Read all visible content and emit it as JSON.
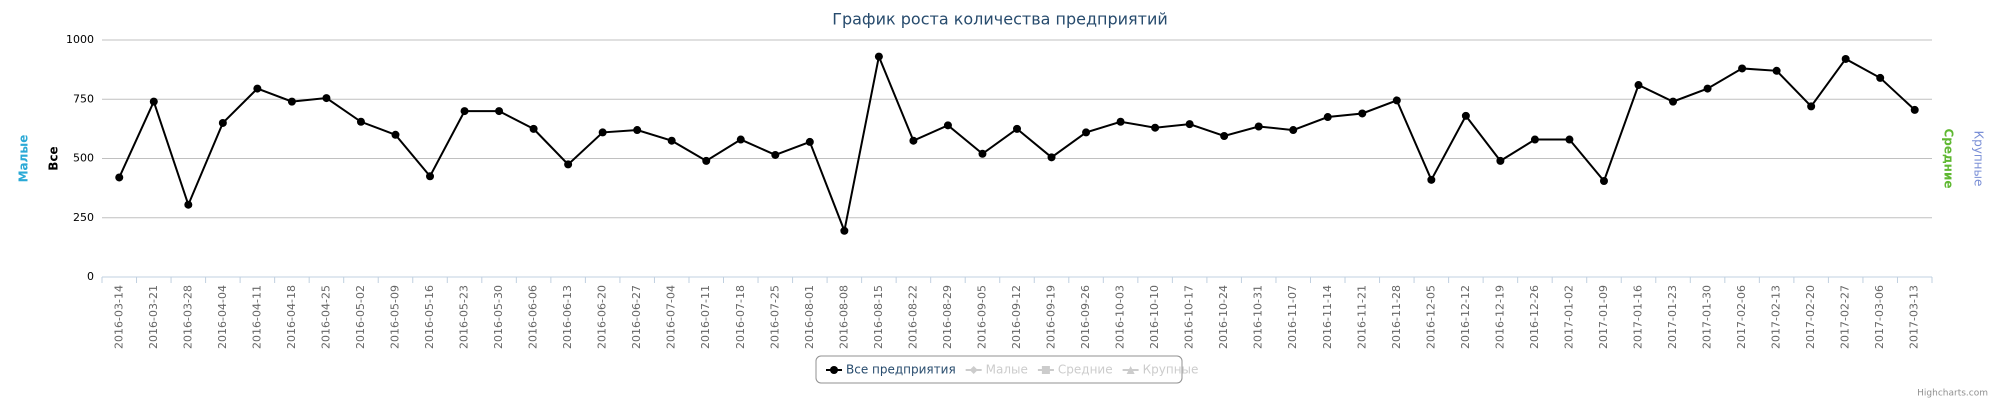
{
  "chart_data": {
    "type": "line",
    "title": "График роста количества предприятий",
    "categories": [
      "2016-03-14",
      "2016-03-21",
      "2016-03-28",
      "2016-04-04",
      "2016-04-11",
      "2016-04-18",
      "2016-04-25",
      "2016-05-02",
      "2016-05-09",
      "2016-05-16",
      "2016-05-23",
      "2016-05-30",
      "2016-06-06",
      "2016-06-13",
      "2016-06-20",
      "2016-06-27",
      "2016-07-04",
      "2016-07-11",
      "2016-07-18",
      "2016-07-25",
      "2016-08-01",
      "2016-08-08",
      "2016-08-15",
      "2016-08-22",
      "2016-08-29",
      "2016-09-05",
      "2016-09-12",
      "2016-09-19",
      "2016-09-26",
      "2016-10-03",
      "2016-10-10",
      "2016-10-17",
      "2016-10-24",
      "2016-10-31",
      "2016-11-07",
      "2016-11-14",
      "2016-11-21",
      "2016-11-28",
      "2016-12-05",
      "2016-12-12",
      "2016-12-19",
      "2016-12-26",
      "2017-01-02",
      "2017-01-09",
      "2017-01-16",
      "2017-01-23",
      "2017-01-30",
      "2017-02-06",
      "2017-02-13",
      "2017-02-20",
      "2017-02-27",
      "2017-03-06",
      "2017-03-13"
    ],
    "series": [
      {
        "name": "Все предприятия",
        "color": "#000000",
        "values": [
          420,
          740,
          305,
          650,
          795,
          740,
          755,
          655,
          600,
          425,
          700,
          700,
          625,
          475,
          610,
          620,
          575,
          490,
          580,
          515,
          570,
          195,
          930,
          575,
          640,
          520,
          625,
          505,
          610,
          655,
          630,
          645,
          595,
          635,
          620,
          675,
          690,
          745,
          410,
          680,
          490,
          580,
          580,
          405,
          810,
          740,
          795,
          880,
          870,
          720,
          920,
          840,
          705
        ]
      }
    ],
    "hidden_series": [
      {
        "name": "Малые"
      },
      {
        "name": "Средние"
      },
      {
        "name": "Крупные"
      }
    ],
    "left_axis_titles": [
      {
        "text": "Малые",
        "color": "#2aa9d6"
      },
      {
        "text": "Все",
        "color": "#000000"
      }
    ],
    "right_axis_titles": [
      {
        "text": "Средние",
        "color": "#5fb832"
      },
      {
        "text": "Крупные",
        "color": "#7a8fd6"
      }
    ],
    "ylim": [
      0,
      1000
    ],
    "yticks": [
      0,
      250,
      500,
      750,
      1000
    ],
    "grid": true,
    "credit": "Highcharts.com"
  }
}
